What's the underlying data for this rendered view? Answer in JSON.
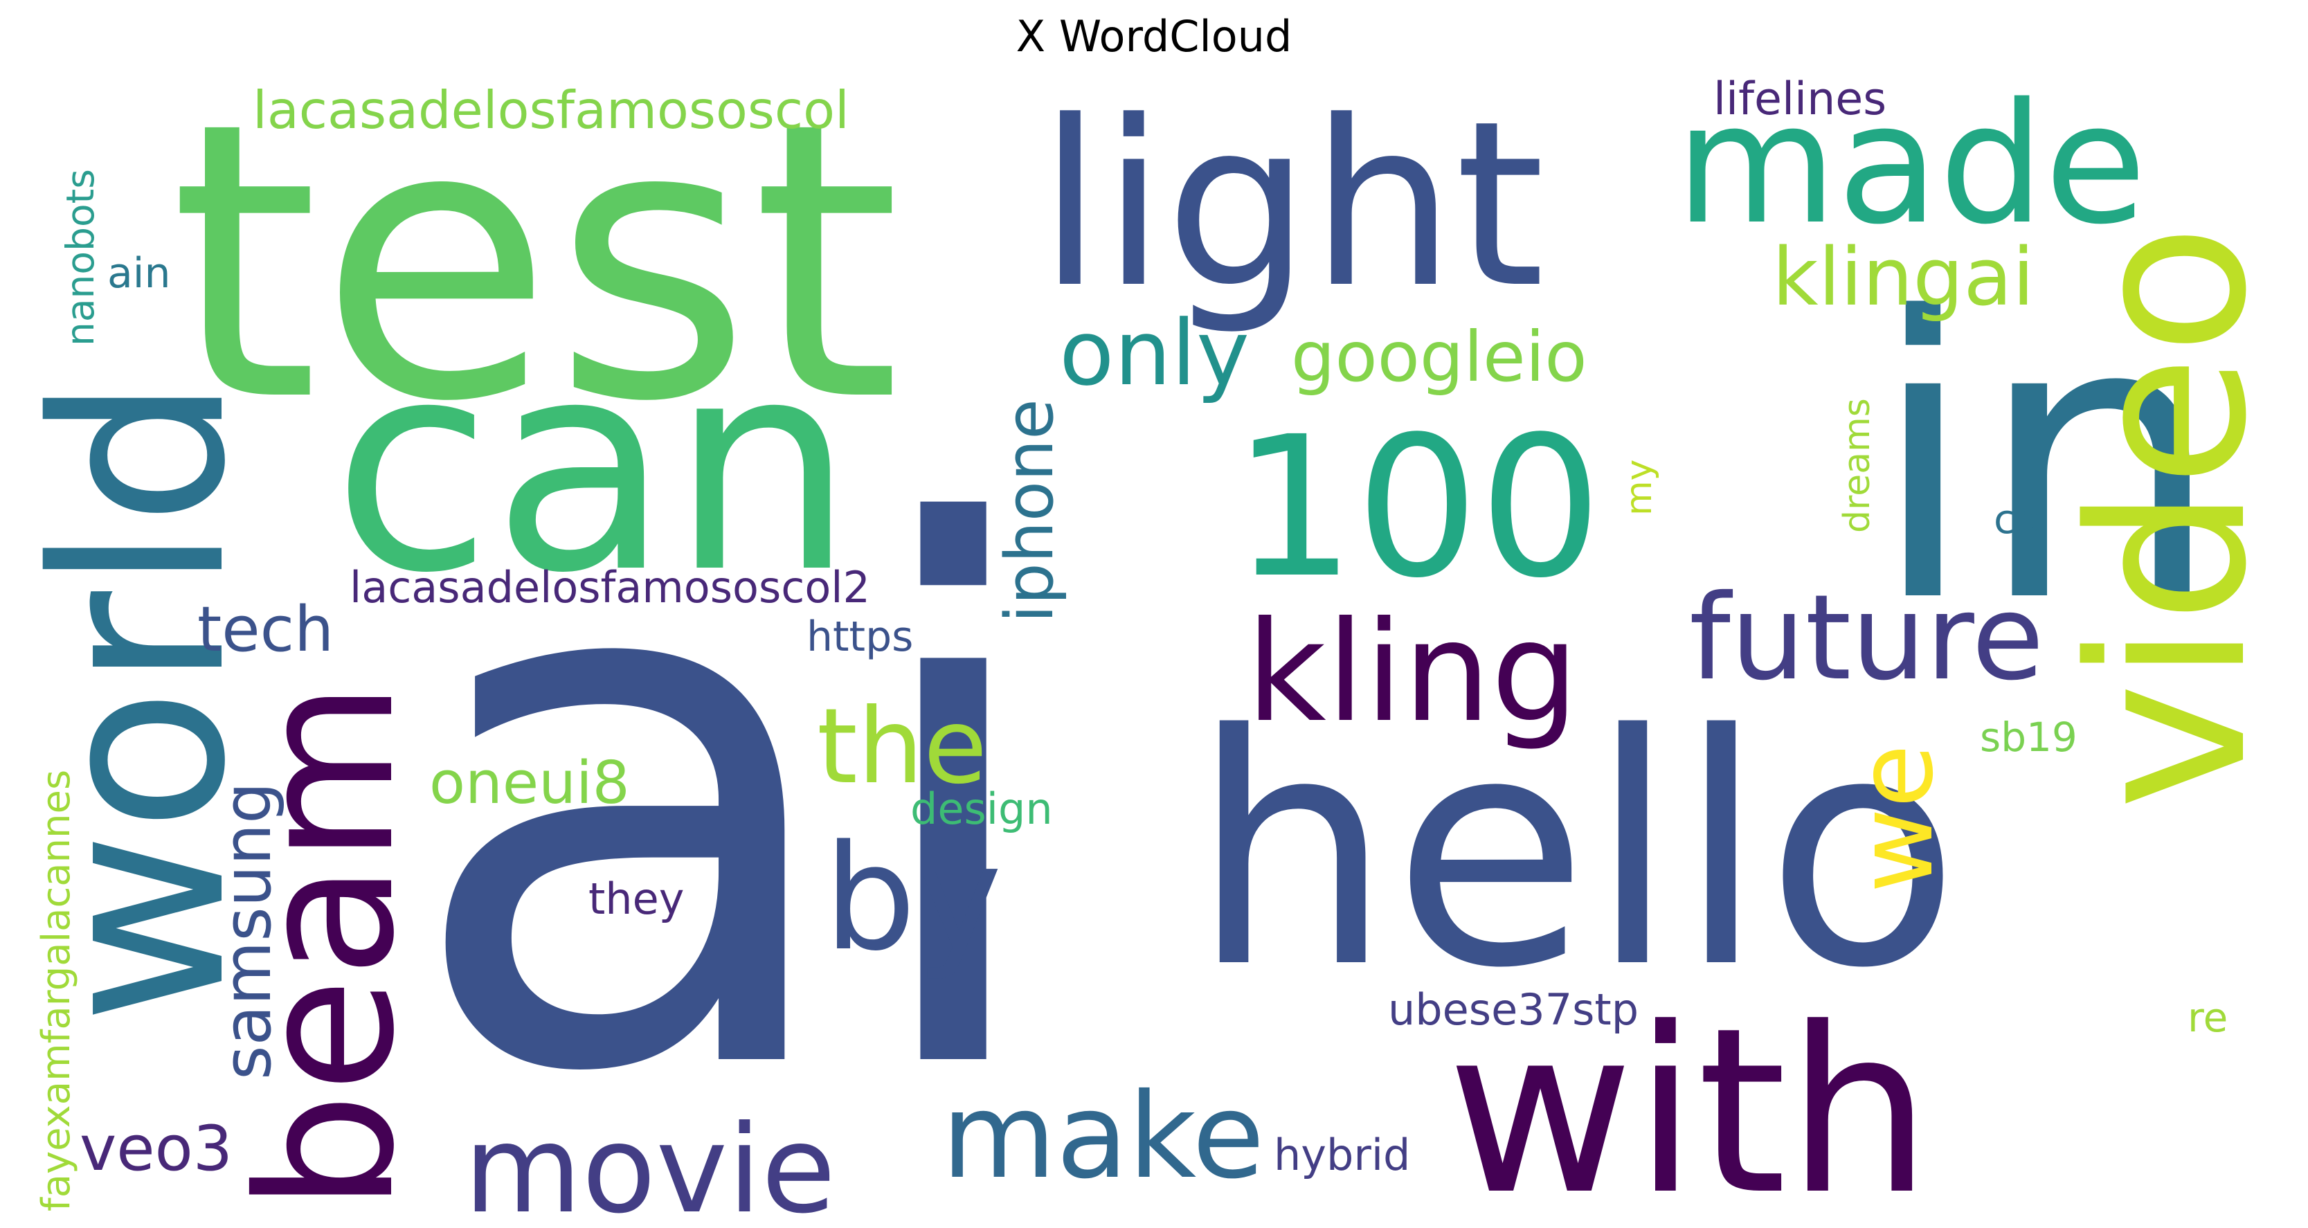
{
  "title": "X WordCloud",
  "words": [
    {
      "text": "ai",
      "color": "#3b528b"
    },
    {
      "text": "test",
      "color": "#5ec962"
    },
    {
      "text": "can",
      "color": "#3dbc74"
    },
    {
      "text": "in",
      "color": "#2c728e"
    },
    {
      "text": "hello",
      "color": "#3b528b"
    },
    {
      "text": "with",
      "color": "#440154"
    },
    {
      "text": "light",
      "color": "#3b528b"
    },
    {
      "text": "world",
      "color": "#2c728e"
    },
    {
      "text": "video",
      "color": "#bddf26"
    },
    {
      "text": "made",
      "color": "#22a884"
    },
    {
      "text": "100",
      "color": "#22a884"
    },
    {
      "text": "beam",
      "color": "#440154"
    },
    {
      "text": "by",
      "color": "#3b528b"
    },
    {
      "text": "kling",
      "color": "#440154"
    },
    {
      "text": "future",
      "color": "#433e85"
    },
    {
      "text": "make",
      "color": "#31688e"
    },
    {
      "text": "movie",
      "color": "#433e85"
    },
    {
      "text": "the",
      "color": "#a0da39"
    },
    {
      "text": "we",
      "color": "#fde725"
    },
    {
      "text": "only",
      "color": "#21918c"
    },
    {
      "text": "klingai",
      "color": "#a0da39"
    },
    {
      "text": "googleio",
      "color": "#84d44b"
    },
    {
      "text": "iphone",
      "color": "#2c728e"
    },
    {
      "text": "samsung",
      "color": "#3b528b"
    },
    {
      "text": "tech",
      "color": "#3b528b"
    },
    {
      "text": "oneui8",
      "color": "#84d44b"
    },
    {
      "text": "veo3",
      "color": "#482878"
    },
    {
      "text": "lacasadelosfamososcol",
      "color": "#84d44b"
    },
    {
      "text": "lacasadelosfamososcol2",
      "color": "#482878"
    },
    {
      "text": "lifelines",
      "color": "#482878"
    },
    {
      "text": "nanobots",
      "color": "#2a9d8f"
    },
    {
      "text": "ain",
      "color": "#2a788e"
    },
    {
      "text": "https",
      "color": "#3b528b"
    },
    {
      "text": "design",
      "color": "#3dbc74"
    },
    {
      "text": "they",
      "color": "#482878"
    },
    {
      "text": "ubese37stp",
      "color": "#433e85"
    },
    {
      "text": "hybrid",
      "color": "#433e85"
    },
    {
      "text": "fayexamfargalacannes",
      "color": "#a0da39"
    },
    {
      "text": "dreams",
      "color": "#a0da39"
    },
    {
      "text": "my",
      "color": "#bddf26"
    },
    {
      "text": "co",
      "color": "#2c728e"
    },
    {
      "text": "sb19",
      "color": "#7ad151"
    },
    {
      "text": "re",
      "color": "#a0da39"
    }
  ]
}
